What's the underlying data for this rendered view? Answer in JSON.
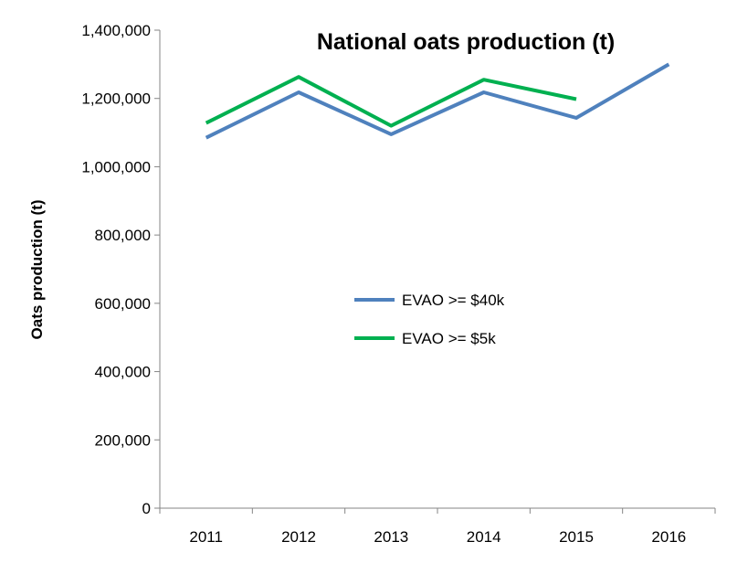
{
  "chart_data": {
    "type": "line",
    "title": "National oats production (t)",
    "xlabel": "",
    "ylabel": "Oats production (t)",
    "categories": [
      "2011",
      "2012",
      "2013",
      "2014",
      "2015",
      "2016"
    ],
    "ylim": [
      0,
      1400000
    ],
    "yticks": [
      0,
      200000,
      400000,
      600000,
      800000,
      1000000,
      1200000,
      1400000
    ],
    "ytick_labels": [
      "0",
      "200,000",
      "400,000",
      "600,000",
      "800,000",
      "1,000,000",
      "1,200,000",
      "1,400,000"
    ],
    "grid": false,
    "legend_position": "center",
    "series": [
      {
        "name": "EVAO >= $40k",
        "color": "#4f81bd",
        "values": [
          1085000,
          1218000,
          1095000,
          1218000,
          1143000,
          1300000
        ]
      },
      {
        "name": "EVAO >= $5k",
        "color": "#00b050",
        "values": [
          1128000,
          1263000,
          1120000,
          1255000,
          1198000,
          null
        ]
      }
    ]
  }
}
